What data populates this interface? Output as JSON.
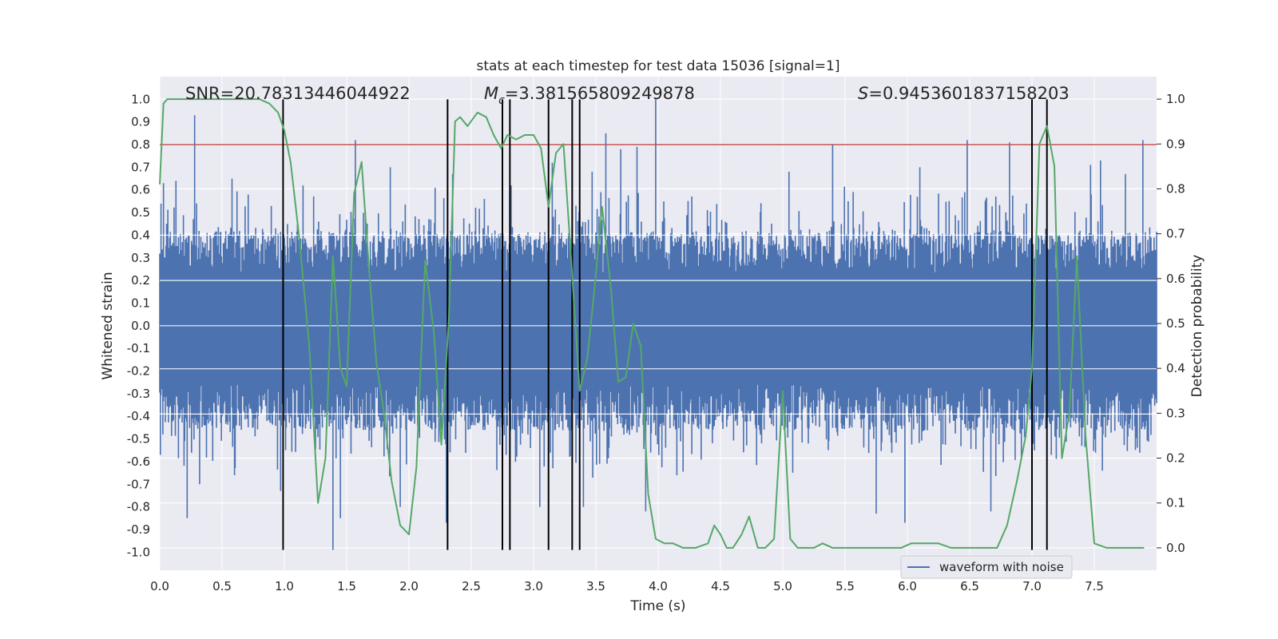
{
  "chart_data": {
    "type": "line",
    "title": "stats at each timestep for test data 15036 [signal=1]",
    "xlabel": "Time (s)",
    "ylabel_left": "Whitened strain",
    "ylabel_right": "Detection probability",
    "xlim": [
      0,
      8
    ],
    "ylim_left": [
      -1.08,
      1.1
    ],
    "ylim_right": [
      -0.05,
      1.05
    ],
    "x_ticks": [
      "0.0",
      "0.5",
      "1.0",
      "1.5",
      "2.0",
      "2.5",
      "3.0",
      "3.5",
      "4.0",
      "4.5",
      "5.0",
      "5.5",
      "6.0",
      "6.5",
      "7.0",
      "7.5"
    ],
    "y_ticks_left": [
      "1.0",
      "0.9",
      "0.8",
      "0.7",
      "0.6",
      "0.5",
      "0.4",
      "0.3",
      "0.2",
      "0.1",
      "0.0",
      "-0.1",
      "-0.2",
      "-0.3",
      "-0.4",
      "-0.5",
      "-0.6",
      "-0.7",
      "-0.8",
      "-0.9",
      "-1.0"
    ],
    "y_ticks_right": [
      "1.0",
      "0.9",
      "0.8",
      "0.7",
      "0.6",
      "0.5",
      "0.4",
      "0.3",
      "0.2",
      "0.1",
      "0.0"
    ],
    "grid": true,
    "legend": {
      "position": "lower-right",
      "entries": [
        "waveform with noise"
      ]
    },
    "annotations": {
      "snr": "SNR=20.78313446044922",
      "mc_symbol": "M",
      "mc_sub": "c",
      "mc_value": "=3.381565809249878",
      "s_symbol": "S",
      "s_value": "=0.9453601837158203"
    },
    "threshold": {
      "value": 0.8,
      "axis": "left",
      "color": "#c44e52"
    },
    "vertical_lines": [
      0.99,
      2.31,
      2.75,
      2.81,
      3.12,
      3.31,
      3.37,
      7.0,
      7.12
    ],
    "vertical_lines_range": [
      -0.99,
      1.0
    ],
    "series": [
      {
        "name": "waveform with noise",
        "axis": "left",
        "color": "#4c72b0",
        "typical_amplitude": 0.42,
        "peaks": [
          [
            0.03,
            0.63
          ],
          [
            0.13,
            0.64
          ],
          [
            0.22,
            -0.85
          ],
          [
            0.28,
            0.93
          ],
          [
            0.32,
            -0.7
          ],
          [
            0.58,
            0.65
          ],
          [
            0.6,
            -0.66
          ],
          [
            0.97,
            -0.73
          ],
          [
            1.15,
            0.62
          ],
          [
            1.39,
            -0.99
          ],
          [
            1.45,
            -0.85
          ],
          [
            1.57,
            0.82
          ],
          [
            1.85,
            0.7
          ],
          [
            1.93,
            -0.8
          ],
          [
            2.3,
            -0.87
          ],
          [
            2.35,
            0.67
          ],
          [
            2.75,
            0.81
          ],
          [
            2.82,
            0.62
          ],
          [
            3.05,
            -0.8
          ],
          [
            3.15,
            0.72
          ],
          [
            3.4,
            -0.8
          ],
          [
            3.47,
            0.68
          ],
          [
            3.58,
            0.85
          ],
          [
            3.7,
            0.78
          ],
          [
            3.83,
            0.79
          ],
          [
            3.9,
            -0.82
          ],
          [
            3.98,
            1.0
          ],
          [
            4.15,
            -0.66
          ],
          [
            5.05,
            0.68
          ],
          [
            5.4,
            0.8
          ],
          [
            5.75,
            -0.83
          ],
          [
            5.98,
            -0.87
          ],
          [
            6.1,
            0.7
          ],
          [
            6.48,
            0.82
          ],
          [
            6.67,
            -0.82
          ],
          [
            6.82,
            0.81
          ],
          [
            7.47,
            0.71
          ],
          [
            7.55,
            0.73
          ],
          [
            7.75,
            0.67
          ],
          [
            7.89,
            0.82
          ]
        ]
      },
      {
        "name": "",
        "axis": "right",
        "color": "#55a868",
        "x": [
          0.0,
          0.03,
          0.06,
          0.12,
          0.5,
          0.8,
          0.88,
          0.95,
          1.0,
          1.05,
          1.12,
          1.2,
          1.27,
          1.33,
          1.39,
          1.45,
          1.5,
          1.56,
          1.62,
          1.68,
          1.74,
          1.8,
          1.86,
          1.93,
          2.0,
          2.06,
          2.13,
          2.2,
          2.26,
          2.32,
          2.37,
          2.41,
          2.47,
          2.55,
          2.62,
          2.68,
          2.74,
          2.79,
          2.86,
          2.93,
          3.0,
          3.06,
          3.12,
          3.18,
          3.24,
          3.3,
          3.37,
          3.43,
          3.49,
          3.55,
          3.62,
          3.68,
          3.74,
          3.8,
          3.86,
          3.92,
          3.98,
          4.05,
          4.12,
          4.2,
          4.3,
          4.4,
          4.45,
          4.5,
          4.55,
          4.6,
          4.67,
          4.73,
          4.8,
          4.86,
          4.93,
          5.0,
          5.06,
          5.12,
          5.18,
          5.25,
          5.32,
          5.4,
          5.5,
          5.6,
          5.72,
          5.85,
          5.95,
          6.03,
          6.15,
          6.25,
          6.35,
          6.45,
          6.6,
          6.72,
          6.8,
          6.88,
          6.95,
          7.0,
          7.06,
          7.12,
          7.18,
          7.24,
          7.3,
          7.36,
          7.43,
          7.5,
          7.6,
          7.7,
          7.8,
          7.9
        ],
        "y": [
          0.81,
          0.99,
          1.0,
          1.0,
          1.0,
          1.0,
          0.99,
          0.97,
          0.93,
          0.86,
          0.69,
          0.45,
          0.1,
          0.2,
          0.65,
          0.4,
          0.36,
          0.79,
          0.86,
          0.62,
          0.41,
          0.3,
          0.15,
          0.05,
          0.03,
          0.18,
          0.64,
          0.48,
          0.23,
          0.51,
          0.95,
          0.96,
          0.94,
          0.97,
          0.96,
          0.92,
          0.89,
          0.92,
          0.91,
          0.92,
          0.92,
          0.89,
          0.76,
          0.88,
          0.9,
          0.65,
          0.35,
          0.42,
          0.58,
          0.76,
          0.58,
          0.37,
          0.38,
          0.5,
          0.45,
          0.12,
          0.02,
          0.01,
          0.01,
          0.0,
          0.0,
          0.01,
          0.05,
          0.03,
          0.0,
          0.0,
          0.03,
          0.07,
          0.0,
          0.0,
          0.02,
          0.35,
          0.02,
          0.0,
          0.0,
          0.0,
          0.01,
          0.0,
          0.0,
          0.0,
          0.0,
          0.0,
          0.0,
          0.01,
          0.01,
          0.01,
          0.0,
          0.0,
          0.0,
          0.0,
          0.05,
          0.15,
          0.25,
          0.4,
          0.9,
          0.94,
          0.85,
          0.2,
          0.3,
          0.65,
          0.25,
          0.01,
          0.0,
          0.0,
          0.0,
          0.0
        ]
      }
    ]
  }
}
